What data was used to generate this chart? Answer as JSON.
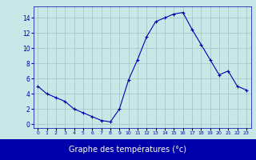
{
  "x": [
    0,
    1,
    2,
    3,
    4,
    5,
    6,
    7,
    8,
    9,
    10,
    11,
    12,
    13,
    14,
    15,
    16,
    17,
    18,
    19,
    20,
    21,
    22,
    23
  ],
  "y": [
    5,
    4,
    3.5,
    3,
    2,
    1.5,
    1,
    0.5,
    0.3,
    2,
    5.8,
    8.5,
    11.5,
    13.5,
    14,
    14.5,
    14.7,
    12.5,
    10.5,
    8.5,
    6.5,
    7,
    5,
    4.5
  ],
  "line_color": "#0000aa",
  "marker": "+",
  "marker_size": 3,
  "bg_color": "#c8e8e8",
  "grid_color": "#a8c8c8",
  "xlabel": "Graphe des températures (°c)",
  "xlabel_bg": "#0000aa",
  "xlabel_color": "#ffffff",
  "ylabel_ticks": [
    0,
    2,
    4,
    6,
    8,
    10,
    12,
    14
  ],
  "xlim": [
    -0.5,
    23.5
  ],
  "ylim": [
    -0.5,
    15.5
  ],
  "xtick_labels": [
    "0",
    "1",
    "2",
    "3",
    "4",
    "5",
    "6",
    "7",
    "8",
    "9",
    "10",
    "11",
    "12",
    "13",
    "14",
    "15",
    "16",
    "17",
    "18",
    "19",
    "20",
    "21",
    "22",
    "23"
  ]
}
